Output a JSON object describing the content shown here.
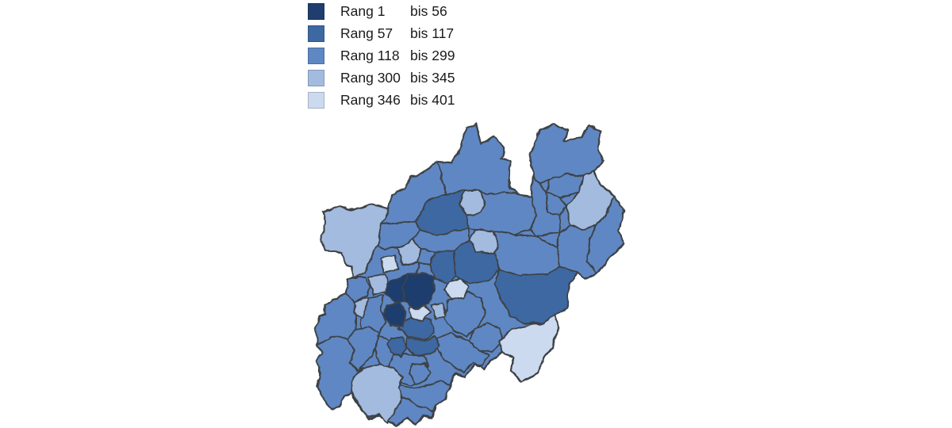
{
  "legend": {
    "rang_word": "Rang",
    "bis_word": "bis",
    "classes": [
      {
        "rank": 1,
        "from": "1",
        "to": "56",
        "color": "#1f3e6e"
      },
      {
        "rank": 2,
        "from": "57",
        "to": "117",
        "color": "#3e68a2"
      },
      {
        "rank": 3,
        "from": "118",
        "to": "299",
        "color": "#5e87c3"
      },
      {
        "rank": 4,
        "from": "300",
        "to": "345",
        "color": "#a2bbde"
      },
      {
        "rank": 5,
        "from": "346",
        "to": "401",
        "color": "#cbdaef"
      }
    ]
  },
  "map": {
    "border_color": "#3e4247",
    "background": "#ffffff",
    "base_class": 3
  },
  "chart_data": {
    "type": "choropleth",
    "title": "",
    "legend_position": "top-left",
    "legend_classes": [
      {
        "label": "Rang 1 bis 56",
        "color": "#1f3e6e"
      },
      {
        "label": "Rang 57 bis 117",
        "color": "#3e68a2"
      },
      {
        "label": "Rang 118 bis 299",
        "color": "#5e87c3"
      },
      {
        "label": "Rang 300 bis 345",
        "color": "#a2bbde"
      },
      {
        "label": "Rang 346 bis 401",
        "color": "#cbdaef"
      }
    ],
    "regions": [
      {
        "id": "borken",
        "class": 3
      },
      {
        "id": "steinfurt",
        "class": 3
      },
      {
        "id": "warendorf",
        "class": 3
      },
      {
        "id": "minden-luebbecke",
        "class": 3
      },
      {
        "id": "herford",
        "class": 3
      },
      {
        "id": "bielefeld",
        "class": 3
      },
      {
        "id": "guetersloh",
        "class": 3
      },
      {
        "id": "hoexter",
        "class": 3
      },
      {
        "id": "paderborn",
        "class": 3
      },
      {
        "id": "soest",
        "class": 3
      },
      {
        "id": "recklinghausen",
        "class": 3
      },
      {
        "id": "wesel",
        "class": 3
      },
      {
        "id": "bochum",
        "class": 3
      },
      {
        "id": "viersen",
        "class": 3
      },
      {
        "id": "neuss",
        "class": 3
      },
      {
        "id": "maerkischer-kreis",
        "class": 3
      },
      {
        "id": "olpe",
        "class": 3
      },
      {
        "id": "oberberg",
        "class": 3
      },
      {
        "id": "koeln",
        "class": 3
      },
      {
        "id": "bonn",
        "class": 3
      },
      {
        "id": "rhein-sieg",
        "class": 3
      },
      {
        "id": "aachen",
        "class": 3
      },
      {
        "id": "dueren",
        "class": 3
      },
      {
        "id": "heinsberg",
        "class": 3
      },
      {
        "id": "rhein-erft",
        "class": 3
      },
      {
        "id": "coesfeld",
        "class": 2
      },
      {
        "id": "unna",
        "class": 2
      },
      {
        "id": "dortmund",
        "class": 2
      },
      {
        "id": "hochsauerland",
        "class": 2
      },
      {
        "id": "wuppertal",
        "class": 2
      },
      {
        "id": "remscheid",
        "class": 2
      },
      {
        "id": "solingen",
        "class": 2
      },
      {
        "id": "kleve",
        "class": 4
      },
      {
        "id": "muenster",
        "class": 4
      },
      {
        "id": "lippe",
        "class": 4
      },
      {
        "id": "hamm",
        "class": 4
      },
      {
        "id": "krefeld",
        "class": 4
      },
      {
        "id": "gelsenkirchen",
        "class": 4
      },
      {
        "id": "herne",
        "class": 4
      },
      {
        "id": "moenchengladbach",
        "class": 4
      },
      {
        "id": "euskirchen",
        "class": 4
      },
      {
        "id": "moers",
        "class": 5
      },
      {
        "id": "hagen",
        "class": 5
      },
      {
        "id": "muelheim",
        "class": 5
      },
      {
        "id": "siegen-wittgenstein",
        "class": 5
      },
      {
        "id": "essen",
        "class": 1
      },
      {
        "id": "oberhausen",
        "class": 1
      },
      {
        "id": "duisburg",
        "class": 1
      }
    ]
  }
}
